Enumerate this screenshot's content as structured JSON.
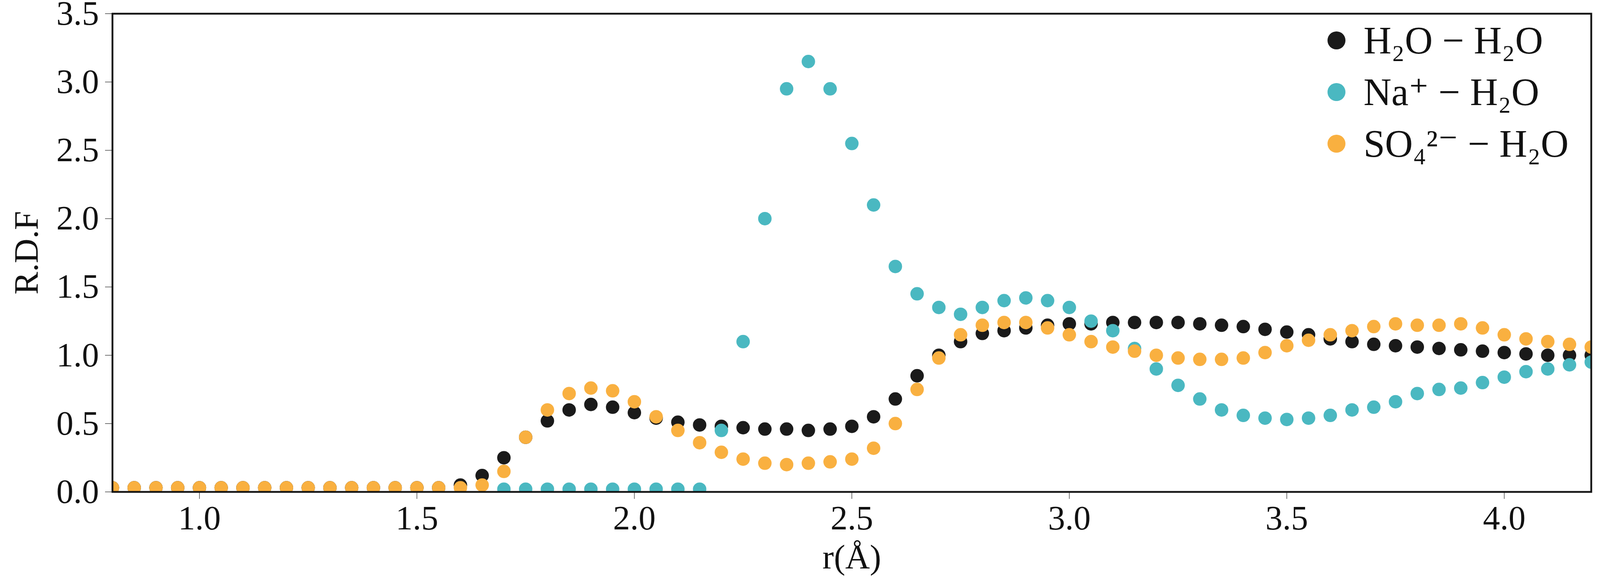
{
  "chart_data": {
    "type": "scatter",
    "xlabel": "r(Å)",
    "ylabel": "R.D.F",
    "xlim": [
      0.8,
      4.2
    ],
    "ylim": [
      0,
      3.5
    ],
    "xticks": [
      {
        "value": 1.0,
        "label": "1.0"
      },
      {
        "value": 1.5,
        "label": "1.5"
      },
      {
        "value": 2.0,
        "label": "2.0"
      },
      {
        "value": 2.5,
        "label": "2.5"
      },
      {
        "value": 3.0,
        "label": "3.0"
      },
      {
        "value": 3.5,
        "label": "3.5"
      },
      {
        "value": 4.0,
        "label": "4.0"
      }
    ],
    "yticks": [
      {
        "value": 0,
        "label": "0.0"
      },
      {
        "value": 0.5,
        "label": "0.5"
      },
      {
        "value": 1.0,
        "label": "1.0"
      },
      {
        "value": 1.5,
        "label": "1.5"
      },
      {
        "value": 2.0,
        "label": "2.0"
      },
      {
        "value": 2.5,
        "label": "2.5"
      },
      {
        "value": 3.0,
        "label": "3.0"
      },
      {
        "value": 3.5,
        "label": "3.5"
      }
    ],
    "legend": "top-right",
    "marker": "circle",
    "x": [
      0.8,
      0.85,
      0.9,
      0.95,
      1.0,
      1.05,
      1.1,
      1.15,
      1.2,
      1.25,
      1.3,
      1.35,
      1.4,
      1.45,
      1.5,
      1.55,
      1.6,
      1.65,
      1.7,
      1.75,
      1.8,
      1.85,
      1.9,
      1.95,
      2.0,
      2.05,
      2.1,
      2.15,
      2.2,
      2.25,
      2.3,
      2.35,
      2.4,
      2.45,
      2.5,
      2.55,
      2.6,
      2.65,
      2.7,
      2.75,
      2.8,
      2.85,
      2.9,
      2.95,
      3.0,
      3.05,
      3.1,
      3.15,
      3.2,
      3.25,
      3.3,
      3.35,
      3.4,
      3.45,
      3.5,
      3.55,
      3.6,
      3.65,
      3.7,
      3.75,
      3.8,
      3.85,
      3.9,
      3.95,
      4.0,
      4.05,
      4.1,
      4.15,
      4.2
    ],
    "series": [
      {
        "name": "H₂O − H₂O",
        "color": "#1a1a1a",
        "values": [
          0.03,
          0.03,
          0.03,
          0.03,
          0.03,
          0.03,
          0.03,
          0.03,
          0.03,
          0.03,
          0.03,
          0.03,
          0.03,
          0.03,
          0.03,
          0.03,
          0.05,
          0.12,
          0.25,
          0.4,
          0.52,
          0.6,
          0.64,
          0.62,
          0.58,
          0.54,
          0.51,
          0.49,
          0.48,
          0.47,
          0.46,
          0.46,
          0.45,
          0.46,
          0.48,
          0.55,
          0.68,
          0.85,
          1.0,
          1.1,
          1.16,
          1.18,
          1.2,
          1.22,
          1.23,
          1.23,
          1.24,
          1.24,
          1.24,
          1.24,
          1.23,
          1.22,
          1.21,
          1.19,
          1.17,
          1.15,
          1.12,
          1.1,
          1.08,
          1.07,
          1.06,
          1.05,
          1.04,
          1.03,
          1.02,
          1.01,
          1.0,
          1.0,
          1.0
        ]
      },
      {
        "name": "Na⁺ − H₂O",
        "color": "#4ab8c1",
        "values": [
          null,
          null,
          null,
          null,
          null,
          null,
          null,
          null,
          null,
          null,
          null,
          null,
          null,
          null,
          null,
          null,
          null,
          null,
          0.02,
          0.02,
          0.02,
          0.02,
          0.02,
          0.02,
          0.02,
          0.02,
          0.02,
          0.02,
          0.45,
          1.1,
          2.0,
          2.95,
          3.15,
          2.95,
          2.55,
          2.1,
          1.65,
          1.45,
          1.35,
          1.3,
          1.35,
          1.4,
          1.42,
          1.4,
          1.35,
          1.25,
          1.18,
          1.05,
          0.9,
          0.78,
          0.68,
          0.6,
          0.56,
          0.54,
          0.53,
          0.54,
          0.56,
          0.6,
          0.62,
          0.66,
          0.72,
          0.75,
          0.76,
          0.8,
          0.84,
          0.88,
          0.9,
          0.93,
          0.95
        ]
      },
      {
        "name": "SO₄²⁻ − H₂O",
        "color": "#f9b040",
        "values": [
          0.03,
          0.03,
          0.03,
          0.03,
          0.03,
          0.03,
          0.03,
          0.03,
          0.03,
          0.03,
          0.03,
          0.03,
          0.03,
          0.03,
          0.03,
          0.03,
          0.03,
          0.05,
          0.15,
          0.4,
          0.6,
          0.72,
          0.76,
          0.74,
          0.66,
          0.55,
          0.45,
          0.36,
          0.29,
          0.24,
          0.21,
          0.2,
          0.21,
          0.22,
          0.24,
          0.32,
          0.5,
          0.75,
          0.98,
          1.15,
          1.22,
          1.24,
          1.24,
          1.2,
          1.15,
          1.1,
          1.06,
          1.03,
          1.0,
          0.98,
          0.97,
          0.97,
          0.98,
          1.02,
          1.07,
          1.11,
          1.15,
          1.18,
          1.21,
          1.23,
          1.22,
          1.22,
          1.23,
          1.2,
          1.15,
          1.12,
          1.1,
          1.08,
          1.06
        ]
      }
    ]
  }
}
